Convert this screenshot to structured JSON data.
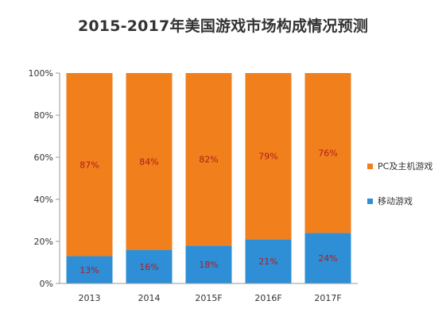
{
  "chart_data": {
    "type": "bar",
    "stacked": true,
    "title": "2015-2017年美国游戏市场构成情况预测",
    "categories": [
      "2013",
      "2014",
      "2015F",
      "2016F",
      "2017F"
    ],
    "series": [
      {
        "name": "移动游戏",
        "values": [
          13,
          16,
          18,
          21,
          24
        ],
        "labels": [
          "13%",
          "16%",
          "18%",
          "21%",
          "24%"
        ],
        "color": "#2e8fd6"
      },
      {
        "name": "PC及主机游戏",
        "values": [
          87,
          84,
          82,
          79,
          76
        ],
        "labels": [
          "87%",
          "84%",
          "82%",
          "79%",
          "76%"
        ],
        "color": "#f07f1c"
      }
    ],
    "yticks": [
      "0%",
      "20%",
      "40%",
      "60%",
      "80%",
      "100%"
    ],
    "ylim": [
      0,
      100
    ],
    "grid": false,
    "legend_position": "right",
    "label_color": "#b11c1c"
  }
}
